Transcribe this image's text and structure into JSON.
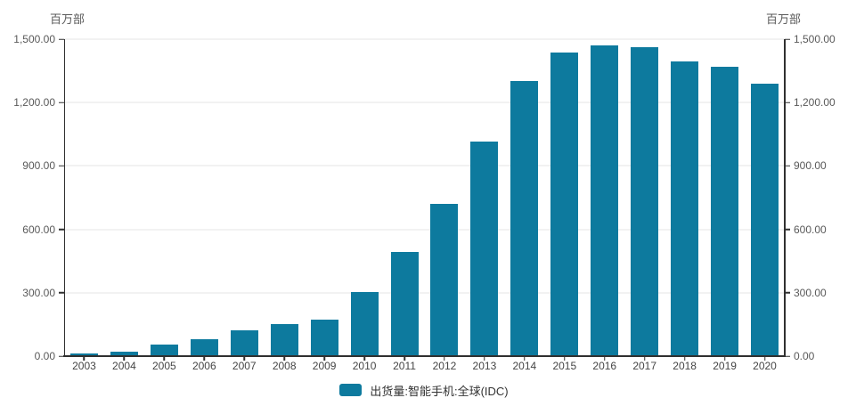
{
  "chart_data": {
    "type": "bar",
    "title": "",
    "unit_label_left": "百万部",
    "unit_label_right": "百万部",
    "categories": [
      "2003",
      "2004",
      "2005",
      "2006",
      "2007",
      "2008",
      "2009",
      "2010",
      "2011",
      "2012",
      "2013",
      "2014",
      "2015",
      "2016",
      "2017",
      "2018",
      "2019",
      "2020"
    ],
    "series": [
      {
        "name": "出货量:智能手机:全球(IDC)",
        "values": [
          12,
          22,
          54,
          80,
          124,
          150,
          172,
          303,
          492,
          722,
          1017,
          1300,
          1435,
          1472,
          1464,
          1395,
          1368,
          1290
        ]
      }
    ],
    "ylim": [
      0,
      1500
    ],
    "y_tick_values": [
      0,
      300,
      600,
      900,
      1200,
      1500
    ],
    "y_tick_labels": [
      "0.00",
      "300.00",
      "600.00",
      "900.00",
      "1,200.00",
      "1,500.00"
    ],
    "bar_color": "#0d7a9e",
    "grid": true,
    "legend_position": "bottom-center"
  },
  "legend": {
    "label": "出货量:智能手机:全球(IDC)"
  },
  "colors": {
    "bar": "#0d7a9e",
    "axis_line": "#303030",
    "gridline": "#e4e4e4",
    "tick_label": "#595959",
    "category_label": "#454545",
    "legend_text": "#333333",
    "background": "#ffffff"
  }
}
